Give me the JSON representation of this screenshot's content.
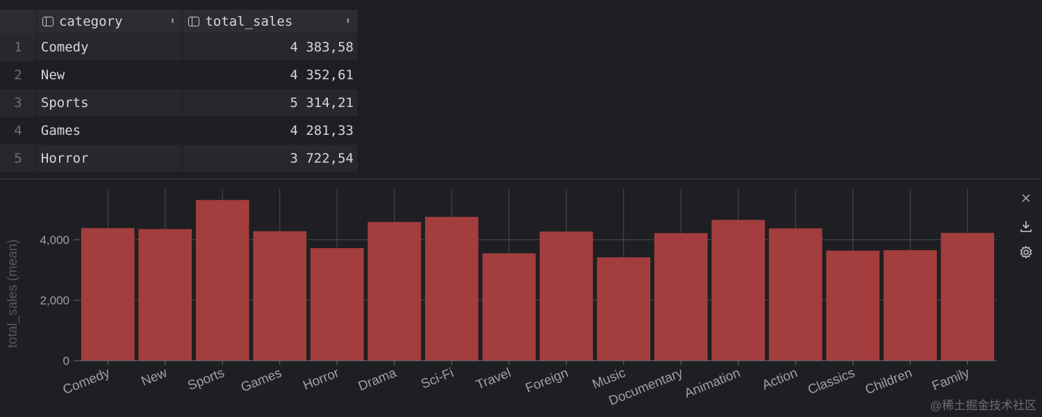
{
  "table": {
    "columns": [
      "category",
      "total_sales"
    ],
    "rows": [
      {
        "num": "1",
        "category": "Comedy",
        "total_sales": "4 383,58"
      },
      {
        "num": "2",
        "category": "New",
        "total_sales": "4 352,61"
      },
      {
        "num": "3",
        "category": "Sports",
        "total_sales": "5 314,21"
      },
      {
        "num": "4",
        "category": "Games",
        "total_sales": "4 281,33"
      },
      {
        "num": "5",
        "category": "Horror",
        "total_sales": "3 722,54"
      }
    ]
  },
  "chart_data": {
    "type": "bar",
    "ylabel": "total_sales (mean)",
    "xlabel": "",
    "ylim": [
      0,
      5400
    ],
    "yticks": [
      0,
      2000,
      4000
    ],
    "ytick_labels": [
      "0",
      "2,000",
      "4,000"
    ],
    "categories": [
      "Comedy",
      "New",
      "Sports",
      "Games",
      "Horror",
      "Drama",
      "Sci-Fi",
      "Travel",
      "Foreign",
      "Music",
      "Documentary",
      "Animation",
      "Action",
      "Classics",
      "Children",
      "Family"
    ],
    "values": [
      4383.58,
      4352.61,
      5314.21,
      4281.33,
      3722.54,
      4587.39,
      4756.98,
      3549.64,
      4270.67,
      3417.72,
      4217.52,
      4656.3,
      4375.85,
      3639.59,
      3655.55,
      4226.07
    ],
    "bar_color": "#a33d3e"
  },
  "toolbar": {
    "close_icon": "close-icon",
    "download_icon": "download-icon",
    "settings_icon": "gear-icon"
  },
  "watermark": "@稀土掘金技术社区"
}
